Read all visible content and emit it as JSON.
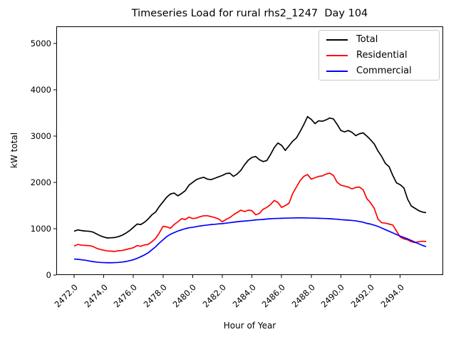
{
  "chart_data": {
    "type": "line",
    "title": "Timeseries Load for rural rhs2_1247  Day 104",
    "xlabel": "Hour of Year",
    "ylabel": "kW total",
    "xlim": [
      2470.8,
      2496.9
    ],
    "ylim": [
      0,
      5369
    ],
    "grid": false,
    "legend_position": "upper right",
    "xtick_values": [
      2472,
      2474,
      2476,
      2478,
      2480,
      2482,
      2484,
      2486,
      2488,
      2490,
      2492,
      2494
    ],
    "xtick_labels": [
      "2472.0",
      "2474.0",
      "2476.0",
      "2478.0",
      "2480.0",
      "2482.0",
      "2484.0",
      "2486.0",
      "2488.0",
      "2490.0",
      "2492.0",
      "2494.0"
    ],
    "ytick_values": [
      0,
      1000,
      2000,
      3000,
      4000,
      5000
    ],
    "ytick_labels": [
      "0",
      "1000",
      "2000",
      "3000",
      "4000",
      "5000"
    ],
    "x": [
      2472.0,
      2472.25,
      2472.5,
      2472.75,
      2473.0,
      2473.25,
      2473.5,
      2473.75,
      2474.0,
      2474.25,
      2474.5,
      2474.75,
      2475.0,
      2475.25,
      2475.5,
      2475.75,
      2476.0,
      2476.25,
      2476.5,
      2476.75,
      2477.0,
      2477.25,
      2477.5,
      2477.75,
      2478.0,
      2478.25,
      2478.5,
      2478.75,
      2479.0,
      2479.25,
      2479.5,
      2479.75,
      2480.0,
      2480.25,
      2480.5,
      2480.75,
      2481.0,
      2481.25,
      2481.5,
      2481.75,
      2482.0,
      2482.25,
      2482.5,
      2482.75,
      2483.0,
      2483.25,
      2483.5,
      2483.75,
      2484.0,
      2484.25,
      2484.5,
      2484.75,
      2485.0,
      2485.25,
      2485.5,
      2485.75,
      2486.0,
      2486.25,
      2486.5,
      2486.75,
      2487.0,
      2487.25,
      2487.5,
      2487.75,
      2488.0,
      2488.25,
      2488.5,
      2488.75,
      2489.0,
      2489.25,
      2489.5,
      2489.75,
      2490.0,
      2490.25,
      2490.5,
      2490.75,
      2491.0,
      2491.25,
      2491.5,
      2491.75,
      2492.0,
      2492.25,
      2492.5,
      2492.75,
      2493.0,
      2493.25,
      2493.5,
      2493.75,
      2494.0,
      2494.25,
      2494.5,
      2494.75,
      2495.0,
      2495.25,
      2495.5,
      2495.75
    ],
    "series": [
      {
        "name": "Total",
        "color": "#000000",
        "values": [
          945,
          975,
          960,
          950,
          945,
          930,
          890,
          850,
          820,
          800,
          805,
          810,
          830,
          860,
          905,
          960,
          1030,
          1100,
          1090,
          1140,
          1210,
          1300,
          1360,
          1480,
          1580,
          1680,
          1750,
          1770,
          1710,
          1760,
          1820,
          1940,
          2000,
          2060,
          2090,
          2110,
          2070,
          2060,
          2090,
          2120,
          2150,
          2190,
          2200,
          2130,
          2180,
          2260,
          2380,
          2480,
          2540,
          2560,
          2490,
          2450,
          2470,
          2600,
          2750,
          2850,
          2800,
          2690,
          2790,
          2890,
          2960,
          3100,
          3250,
          3420,
          3360,
          3270,
          3330,
          3320,
          3350,
          3390,
          3370,
          3250,
          3120,
          3090,
          3120,
          3080,
          3010,
          3050,
          3070,
          3000,
          2920,
          2830,
          2680,
          2560,
          2410,
          2340,
          2150,
          1990,
          1950,
          1880,
          1640,
          1490,
          1440,
          1390,
          1360,
          1345
        ]
      },
      {
        "name": "Residential",
        "color": "#ff0000",
        "values": [
          625,
          660,
          645,
          640,
          635,
          620,
          580,
          555,
          535,
          520,
          515,
          510,
          525,
          530,
          550,
          570,
          590,
          635,
          620,
          650,
          660,
          720,
          790,
          910,
          1050,
          1040,
          1010,
          1090,
          1150,
          1215,
          1200,
          1250,
          1220,
          1230,
          1260,
          1280,
          1280,
          1260,
          1240,
          1210,
          1150,
          1200,
          1240,
          1300,
          1350,
          1400,
          1370,
          1400,
          1390,
          1300,
          1330,
          1420,
          1460,
          1520,
          1610,
          1570,
          1460,
          1500,
          1550,
          1760,
          1900,
          2040,
          2130,
          2170,
          2070,
          2100,
          2130,
          2140,
          2180,
          2200,
          2150,
          2000,
          1940,
          1920,
          1900,
          1860,
          1890,
          1900,
          1840,
          1650,
          1560,
          1440,
          1210,
          1130,
          1120,
          1100,
          1080,
          950,
          820,
          780,
          760,
          720,
          700,
          720,
          730,
          725
        ]
      },
      {
        "name": "Commercial",
        "color": "#0000ff",
        "values": [
          345,
          340,
          330,
          320,
          305,
          290,
          280,
          272,
          268,
          265,
          265,
          268,
          272,
          280,
          292,
          310,
          330,
          360,
          395,
          435,
          480,
          545,
          610,
          690,
          760,
          830,
          880,
          915,
          950,
          975,
          1000,
          1020,
          1030,
          1045,
          1060,
          1070,
          1080,
          1090,
          1095,
          1105,
          1110,
          1120,
          1130,
          1140,
          1150,
          1160,
          1165,
          1172,
          1180,
          1190,
          1195,
          1200,
          1210,
          1215,
          1220,
          1222,
          1225,
          1228,
          1230,
          1232,
          1235,
          1235,
          1235,
          1232,
          1230,
          1228,
          1225,
          1222,
          1220,
          1215,
          1210,
          1205,
          1195,
          1190,
          1185,
          1178,
          1170,
          1155,
          1140,
          1115,
          1100,
          1075,
          1050,
          1015,
          980,
          945,
          910,
          875,
          840,
          810,
          780,
          745,
          710,
          675,
          640,
          615
        ]
      }
    ]
  }
}
